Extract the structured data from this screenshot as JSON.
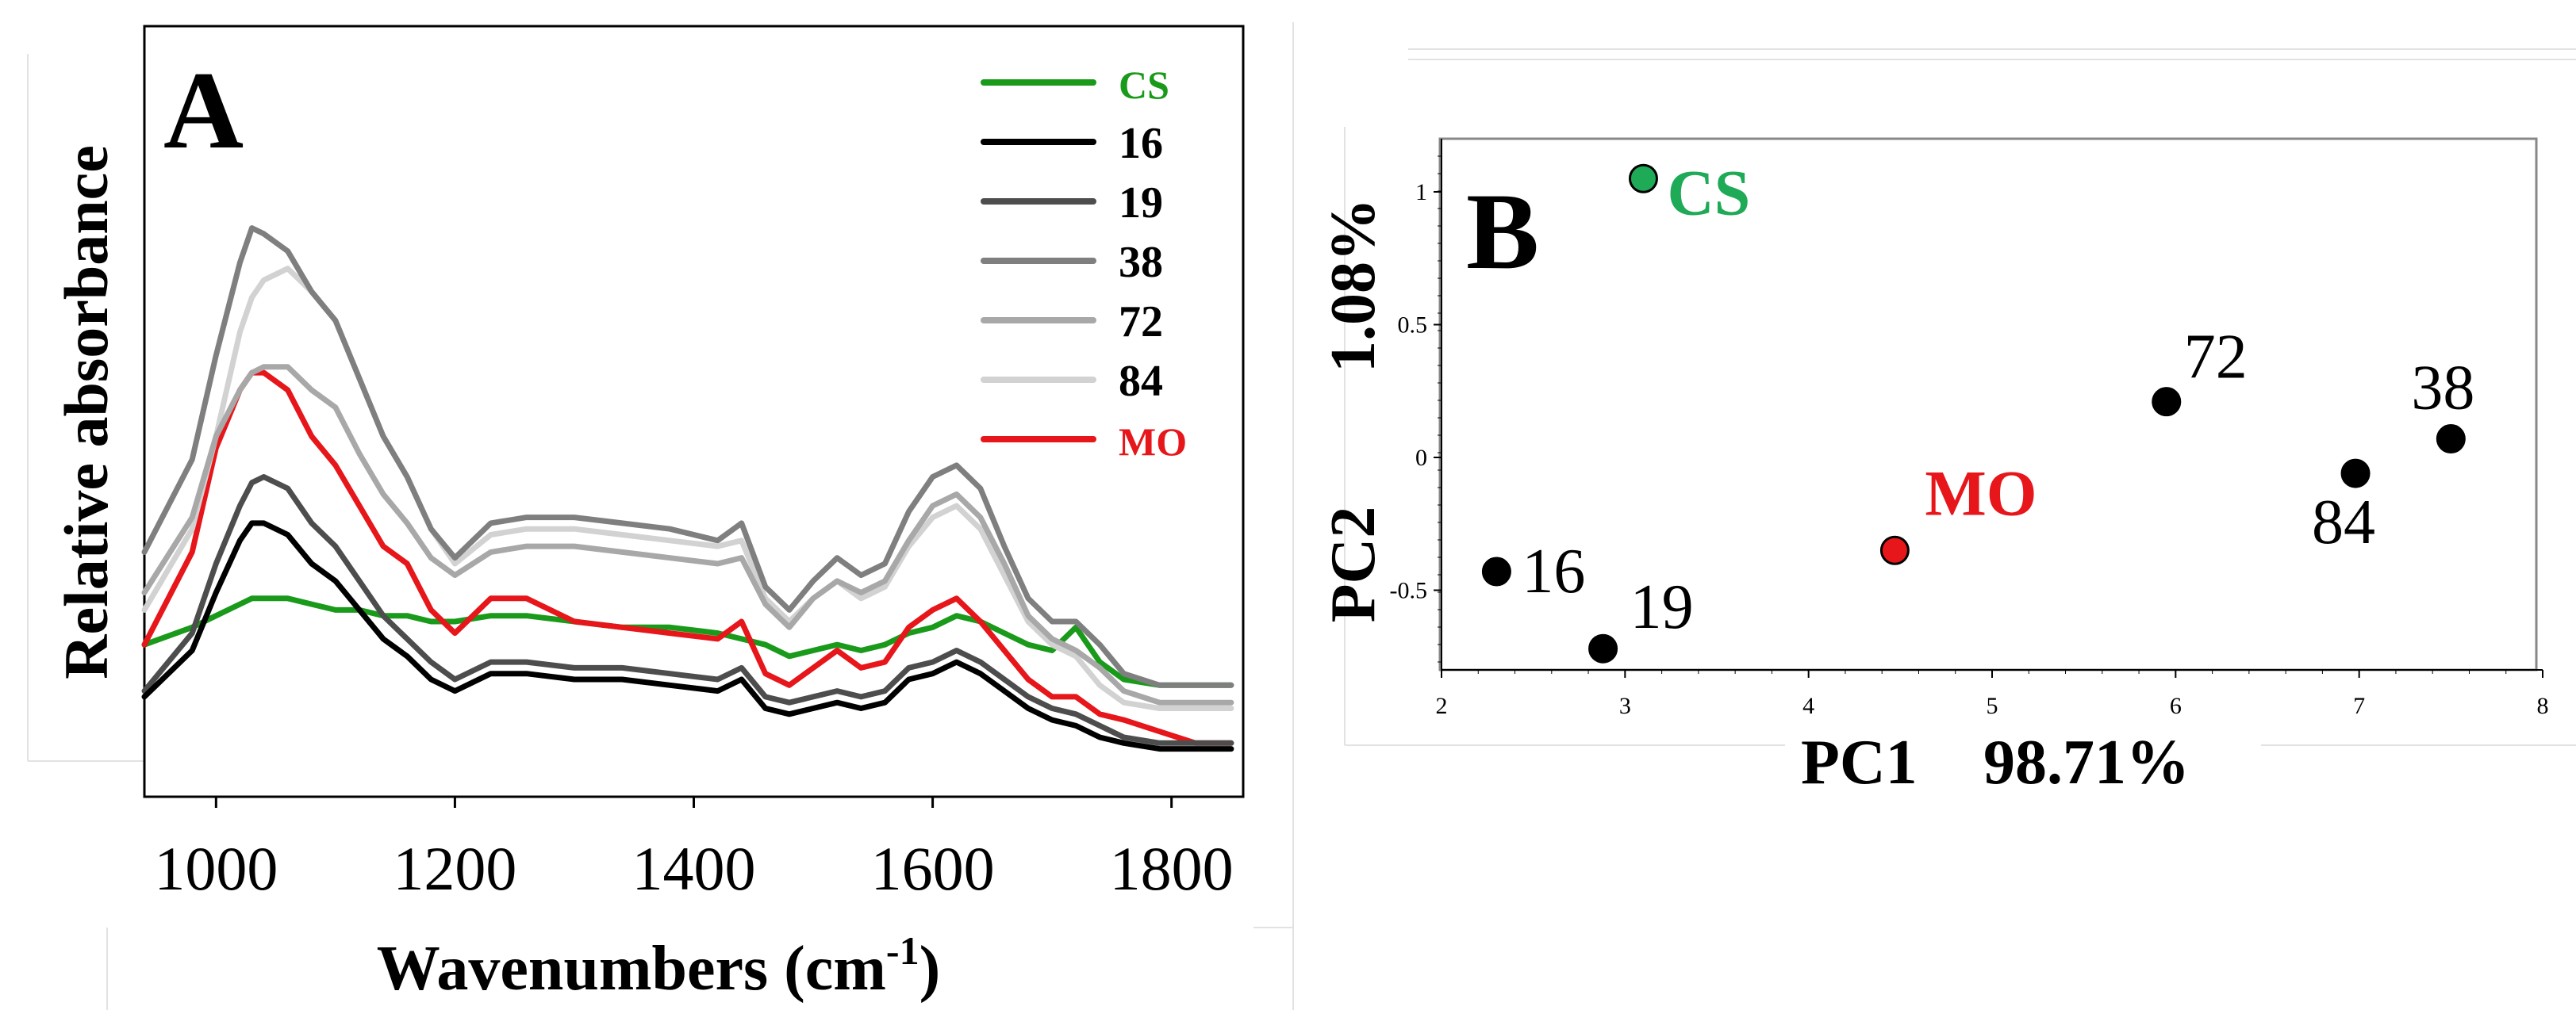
{
  "chart_data": [
    {
      "panel": "A",
      "type": "line",
      "xlabel": "Wavenumbers (cm",
      "xlabel_sup": "-1",
      "xlabel_end": ")",
      "ylabel": "Relative absorbance",
      "xlim": [
        940,
        1860
      ],
      "ylim": [
        0,
        1.0
      ],
      "y_ticks_shown": false,
      "x_ticks": [
        1000,
        1200,
        1400,
        1600,
        1800
      ],
      "legend_position": "top-right",
      "x": [
        940,
        980,
        1000,
        1020,
        1030,
        1040,
        1060,
        1080,
        1100,
        1120,
        1140,
        1160,
        1180,
        1200,
        1230,
        1260,
        1300,
        1340,
        1380,
        1420,
        1440,
        1460,
        1480,
        1500,
        1520,
        1540,
        1560,
        1580,
        1600,
        1620,
        1640,
        1660,
        1680,
        1700,
        1720,
        1740,
        1760,
        1790,
        1820,
        1850
      ],
      "series": [
        {
          "name": "CS",
          "color": "#1a9a1a",
          "values": [
            0.16,
            0.19,
            0.21,
            0.23,
            0.24,
            0.24,
            0.24,
            0.23,
            0.22,
            0.22,
            0.21,
            0.21,
            0.2,
            0.2,
            0.21,
            0.21,
            0.2,
            0.19,
            0.19,
            0.18,
            0.17,
            0.16,
            0.14,
            0.15,
            0.16,
            0.15,
            0.16,
            0.18,
            0.19,
            0.21,
            0.2,
            0.18,
            0.16,
            0.15,
            0.19,
            0.13,
            0.1,
            0.09,
            0.09,
            0.09
          ]
        },
        {
          "name": "16",
          "color": "#000000",
          "values": [
            0.07,
            0.15,
            0.25,
            0.34,
            0.37,
            0.37,
            0.35,
            0.3,
            0.27,
            0.22,
            0.17,
            0.14,
            0.1,
            0.08,
            0.11,
            0.11,
            0.1,
            0.1,
            0.09,
            0.08,
            0.1,
            0.05,
            0.04,
            0.05,
            0.06,
            0.05,
            0.06,
            0.1,
            0.11,
            0.13,
            0.11,
            0.08,
            0.05,
            0.03,
            0.02,
            0.0,
            -0.01,
            -0.02,
            -0.02,
            -0.02
          ]
        },
        {
          "name": "19",
          "color": "#4d4d4d",
          "values": [
            0.08,
            0.18,
            0.3,
            0.4,
            0.44,
            0.45,
            0.43,
            0.37,
            0.33,
            0.27,
            0.21,
            0.17,
            0.13,
            0.1,
            0.13,
            0.13,
            0.12,
            0.12,
            0.11,
            0.1,
            0.12,
            0.07,
            0.06,
            0.07,
            0.08,
            0.07,
            0.08,
            0.12,
            0.13,
            0.15,
            0.13,
            0.1,
            0.07,
            0.05,
            0.04,
            0.02,
            0.0,
            -0.01,
            -0.01,
            -0.01
          ]
        },
        {
          "name": "38",
          "color": "#7f7f7f",
          "values": [
            0.32,
            0.48,
            0.66,
            0.82,
            0.88,
            0.87,
            0.84,
            0.77,
            0.72,
            0.62,
            0.52,
            0.45,
            0.36,
            0.31,
            0.37,
            0.38,
            0.38,
            0.37,
            0.36,
            0.34,
            0.37,
            0.26,
            0.22,
            0.27,
            0.31,
            0.28,
            0.3,
            0.39,
            0.45,
            0.47,
            0.43,
            0.33,
            0.24,
            0.2,
            0.2,
            0.16,
            0.11,
            0.09,
            0.09,
            0.09
          ]
        },
        {
          "name": "72",
          "color": "#a8a8a8",
          "values": [
            0.25,
            0.38,
            0.52,
            0.6,
            0.63,
            0.64,
            0.64,
            0.6,
            0.57,
            0.49,
            0.42,
            0.37,
            0.31,
            0.28,
            0.32,
            0.33,
            0.33,
            0.32,
            0.31,
            0.3,
            0.31,
            0.23,
            0.19,
            0.24,
            0.27,
            0.25,
            0.27,
            0.34,
            0.4,
            0.42,
            0.38,
            0.3,
            0.21,
            0.17,
            0.15,
            0.12,
            0.08,
            0.06,
            0.06,
            0.06
          ]
        },
        {
          "name": "84",
          "color": "#d2d2d2",
          "values": [
            0.22,
            0.36,
            0.52,
            0.7,
            0.76,
            0.79,
            0.81,
            0.77,
            0.72,
            0.62,
            0.52,
            0.45,
            0.36,
            0.3,
            0.35,
            0.36,
            0.36,
            0.35,
            0.34,
            0.33,
            0.34,
            0.24,
            0.2,
            0.24,
            0.27,
            0.24,
            0.26,
            0.33,
            0.38,
            0.4,
            0.36,
            0.28,
            0.2,
            0.16,
            0.14,
            0.09,
            0.06,
            0.05,
            0.05,
            0.05
          ]
        },
        {
          "name": "MO",
          "color": "#e6161a",
          "values": [
            0.16,
            0.32,
            0.5,
            0.6,
            0.63,
            0.63,
            0.6,
            0.52,
            0.47,
            0.4,
            0.33,
            0.3,
            0.22,
            0.18,
            0.24,
            0.24,
            0.2,
            0.19,
            0.18,
            0.17,
            0.2,
            0.11,
            0.09,
            0.12,
            0.15,
            0.12,
            0.13,
            0.19,
            0.22,
            0.24,
            0.2,
            0.15,
            0.1,
            0.07,
            0.07,
            0.04,
            0.03,
            0.01,
            -0.01,
            -0.01
          ]
        }
      ]
    },
    {
      "panel": "B",
      "type": "scatter",
      "xlabel": "PC1",
      "xlabel_value": "98.71%",
      "ylabel": "PC2",
      "ylabel_value": "1.08%",
      "xlim": [
        2,
        8
      ],
      "ylim": [
        -0.8,
        1.2
      ],
      "x_ticks": [
        2,
        3,
        4,
        5,
        6,
        7,
        8
      ],
      "y_ticks": [
        -0.5,
        0,
        0.5,
        1
      ],
      "points": [
        {
          "label": "CS",
          "x": 3.1,
          "y": 1.05,
          "fill": "#1faa57",
          "label_color": "#1faa57"
        },
        {
          "label": "16",
          "x": 2.3,
          "y": -0.43,
          "fill": "#000000",
          "label_color": "#000000"
        },
        {
          "label": "19",
          "x": 2.88,
          "y": -0.72,
          "fill": "#000000",
          "label_color": "#000000"
        },
        {
          "label": "MO",
          "x": 4.47,
          "y": -0.35,
          "fill": "#e6161a",
          "label_color": "#e6161a"
        },
        {
          "label": "72",
          "x": 5.95,
          "y": 0.21,
          "fill": "#000000",
          "label_color": "#000000"
        },
        {
          "label": "84",
          "x": 6.98,
          "y": -0.06,
          "fill": "#000000",
          "label_color": "#000000"
        },
        {
          "label": "38",
          "x": 7.5,
          "y": 0.07,
          "fill": "#000000",
          "label_color": "#000000"
        }
      ]
    }
  ],
  "panel_labels": {
    "a": "A",
    "b": "B"
  }
}
